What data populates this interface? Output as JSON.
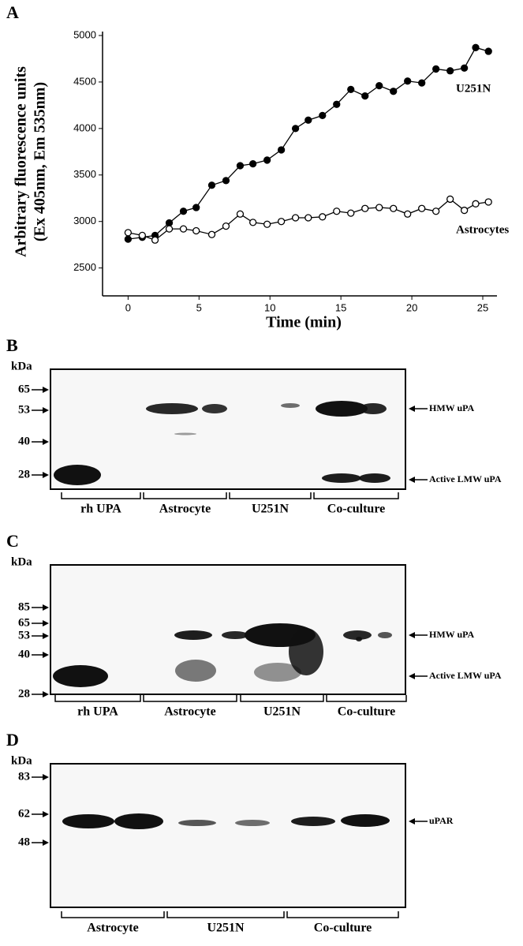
{
  "chart_data": {
    "type": "line",
    "panel": "A",
    "xlabel": "Time (min)",
    "ylabel": [
      "Arbitrary fluorescence units",
      "(Ex 405nm, Em 535nm)"
    ],
    "xlim": [
      -1.8,
      26
    ],
    "xticks": [
      0,
      5,
      10,
      15,
      20,
      25
    ],
    "ylim": [
      2200,
      5000
    ],
    "yticks": [
      2500,
      3000,
      3500,
      4000,
      4500,
      5000
    ],
    "x": [
      0,
      1,
      1.9,
      2.9,
      3.9,
      4.8,
      5.9,
      6.9,
      7.9,
      8.8,
      9.8,
      10.8,
      11.8,
      12.7,
      13.7,
      14.7,
      15.7,
      16.7,
      17.7,
      18.7,
      19.7,
      20.7,
      21.7,
      22.7,
      23.7,
      24.5,
      25.4
    ],
    "series": [
      {
        "name": "U251N",
        "color": "#000",
        "marker_fill": "#000",
        "values": [
          2810,
          2830,
          2850,
          2985,
          3110,
          3150,
          3390,
          3440,
          3600,
          3620,
          3660,
          3770,
          4000,
          4090,
          4140,
          4260,
          4420,
          4350,
          4460,
          4400,
          4510,
          4490,
          4640,
          4620,
          4650,
          4870,
          4830
        ]
      },
      {
        "name": "Astrocytes",
        "color": "#000",
        "marker_fill": "#fff",
        "values": [
          2880,
          2850,
          2800,
          2920,
          2920,
          2900,
          2860,
          2950,
          3080,
          2990,
          2970,
          3000,
          3040,
          3040,
          3050,
          3110,
          3090,
          3140,
          3150,
          3140,
          3080,
          3140,
          3110,
          3240,
          3120,
          3190,
          3210
        ]
      }
    ]
  },
  "blots": [
    {
      "panel": "B",
      "unit": "kDa",
      "markers": [
        65,
        53,
        40,
        28
      ],
      "bands": [
        "HMW uPA",
        "Active LMW uPA"
      ],
      "lanes": [
        "rh UPA",
        "Astrocyte",
        "U251N",
        "Co-culture"
      ]
    },
    {
      "panel": "C",
      "unit": "kDa",
      "markers": [
        85,
        65,
        53,
        40,
        28
      ],
      "bands": [
        "HMW uPA",
        "Active LMW uPA"
      ],
      "lanes": [
        "rh UPA",
        "Astrocyte",
        "U251N",
        "Co-culture"
      ]
    },
    {
      "panel": "D",
      "unit": "kDa",
      "markers": [
        83,
        62,
        48
      ],
      "bands": [
        "uPAR"
      ],
      "lanes": [
        "Astrocyte",
        "U251N",
        "Co-culture"
      ]
    }
  ]
}
